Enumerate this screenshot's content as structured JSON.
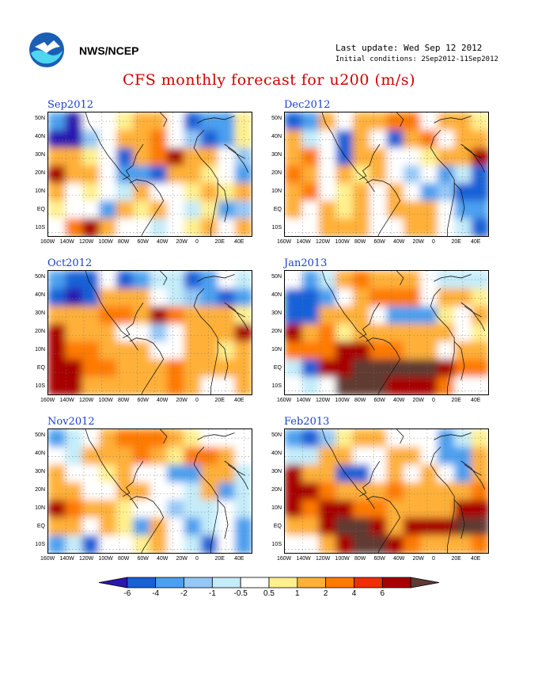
{
  "header": {
    "agency": "NWS/NCEP",
    "last_update": "Last update: Wed Sep 12 2012",
    "initial_conditions": "Initial conditions: 2Sep2012-11Sep2012",
    "title": "CFS monthly forecast for u200 (m/s)"
  },
  "panels": [
    {
      "label": "Sep2012"
    },
    {
      "label": "Dec2012"
    },
    {
      "label": "Oct2012"
    },
    {
      "label": "Jan2013"
    },
    {
      "label": "Nov2012"
    },
    {
      "label": "Feb2013"
    }
  ],
  "axes": {
    "lat_labels": [
      "50N",
      "40N",
      "30N",
      "20N",
      "10N",
      "EQ",
      "10S"
    ],
    "lon_labels": [
      "160W",
      "140W",
      "120W",
      "100W",
      "80W",
      "60W",
      "40W",
      "20W",
      "0",
      "20E",
      "40E"
    ]
  },
  "colorbar": {
    "labels": [
      "-6",
      "-4",
      "-2",
      "-1",
      "-0.5",
      "0.5",
      "1",
      "2",
      "4",
      "6"
    ],
    "colors": [
      "#2a17b0",
      "#1660d8",
      "#4ba0f0",
      "#94c8f6",
      "#c4ecf9",
      "#ffffff",
      "#fff08e",
      "#ffb038",
      "#ff7a00",
      "#ee2f00",
      "#a80000",
      "#5e3a33"
    ]
  }
}
